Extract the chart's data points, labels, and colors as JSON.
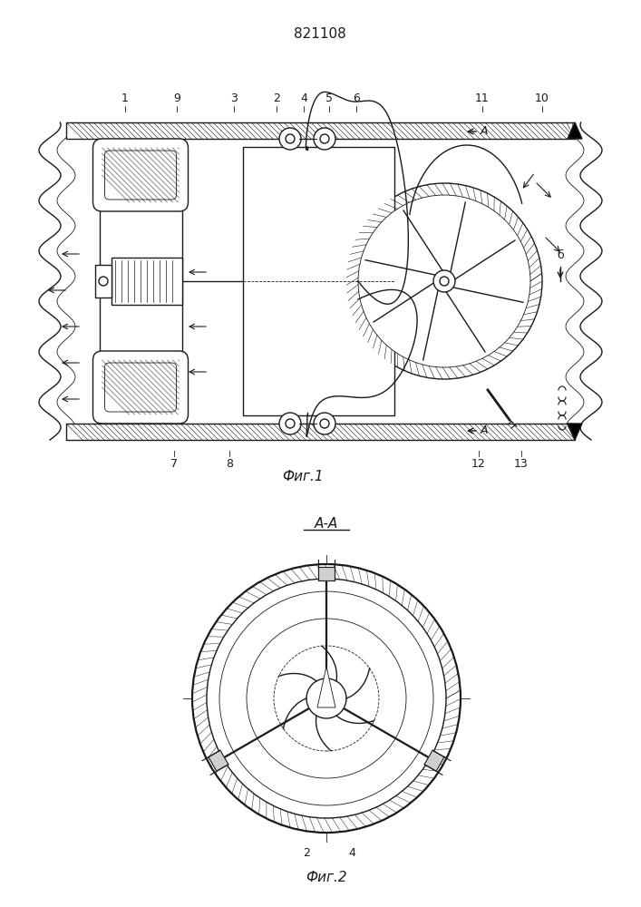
{
  "patent_number": "821108",
  "fig1_label": "Фиг.1",
  "fig2_label": "Фиг.2",
  "section_label": "А-А",
  "line_color": "#1a1a1a"
}
